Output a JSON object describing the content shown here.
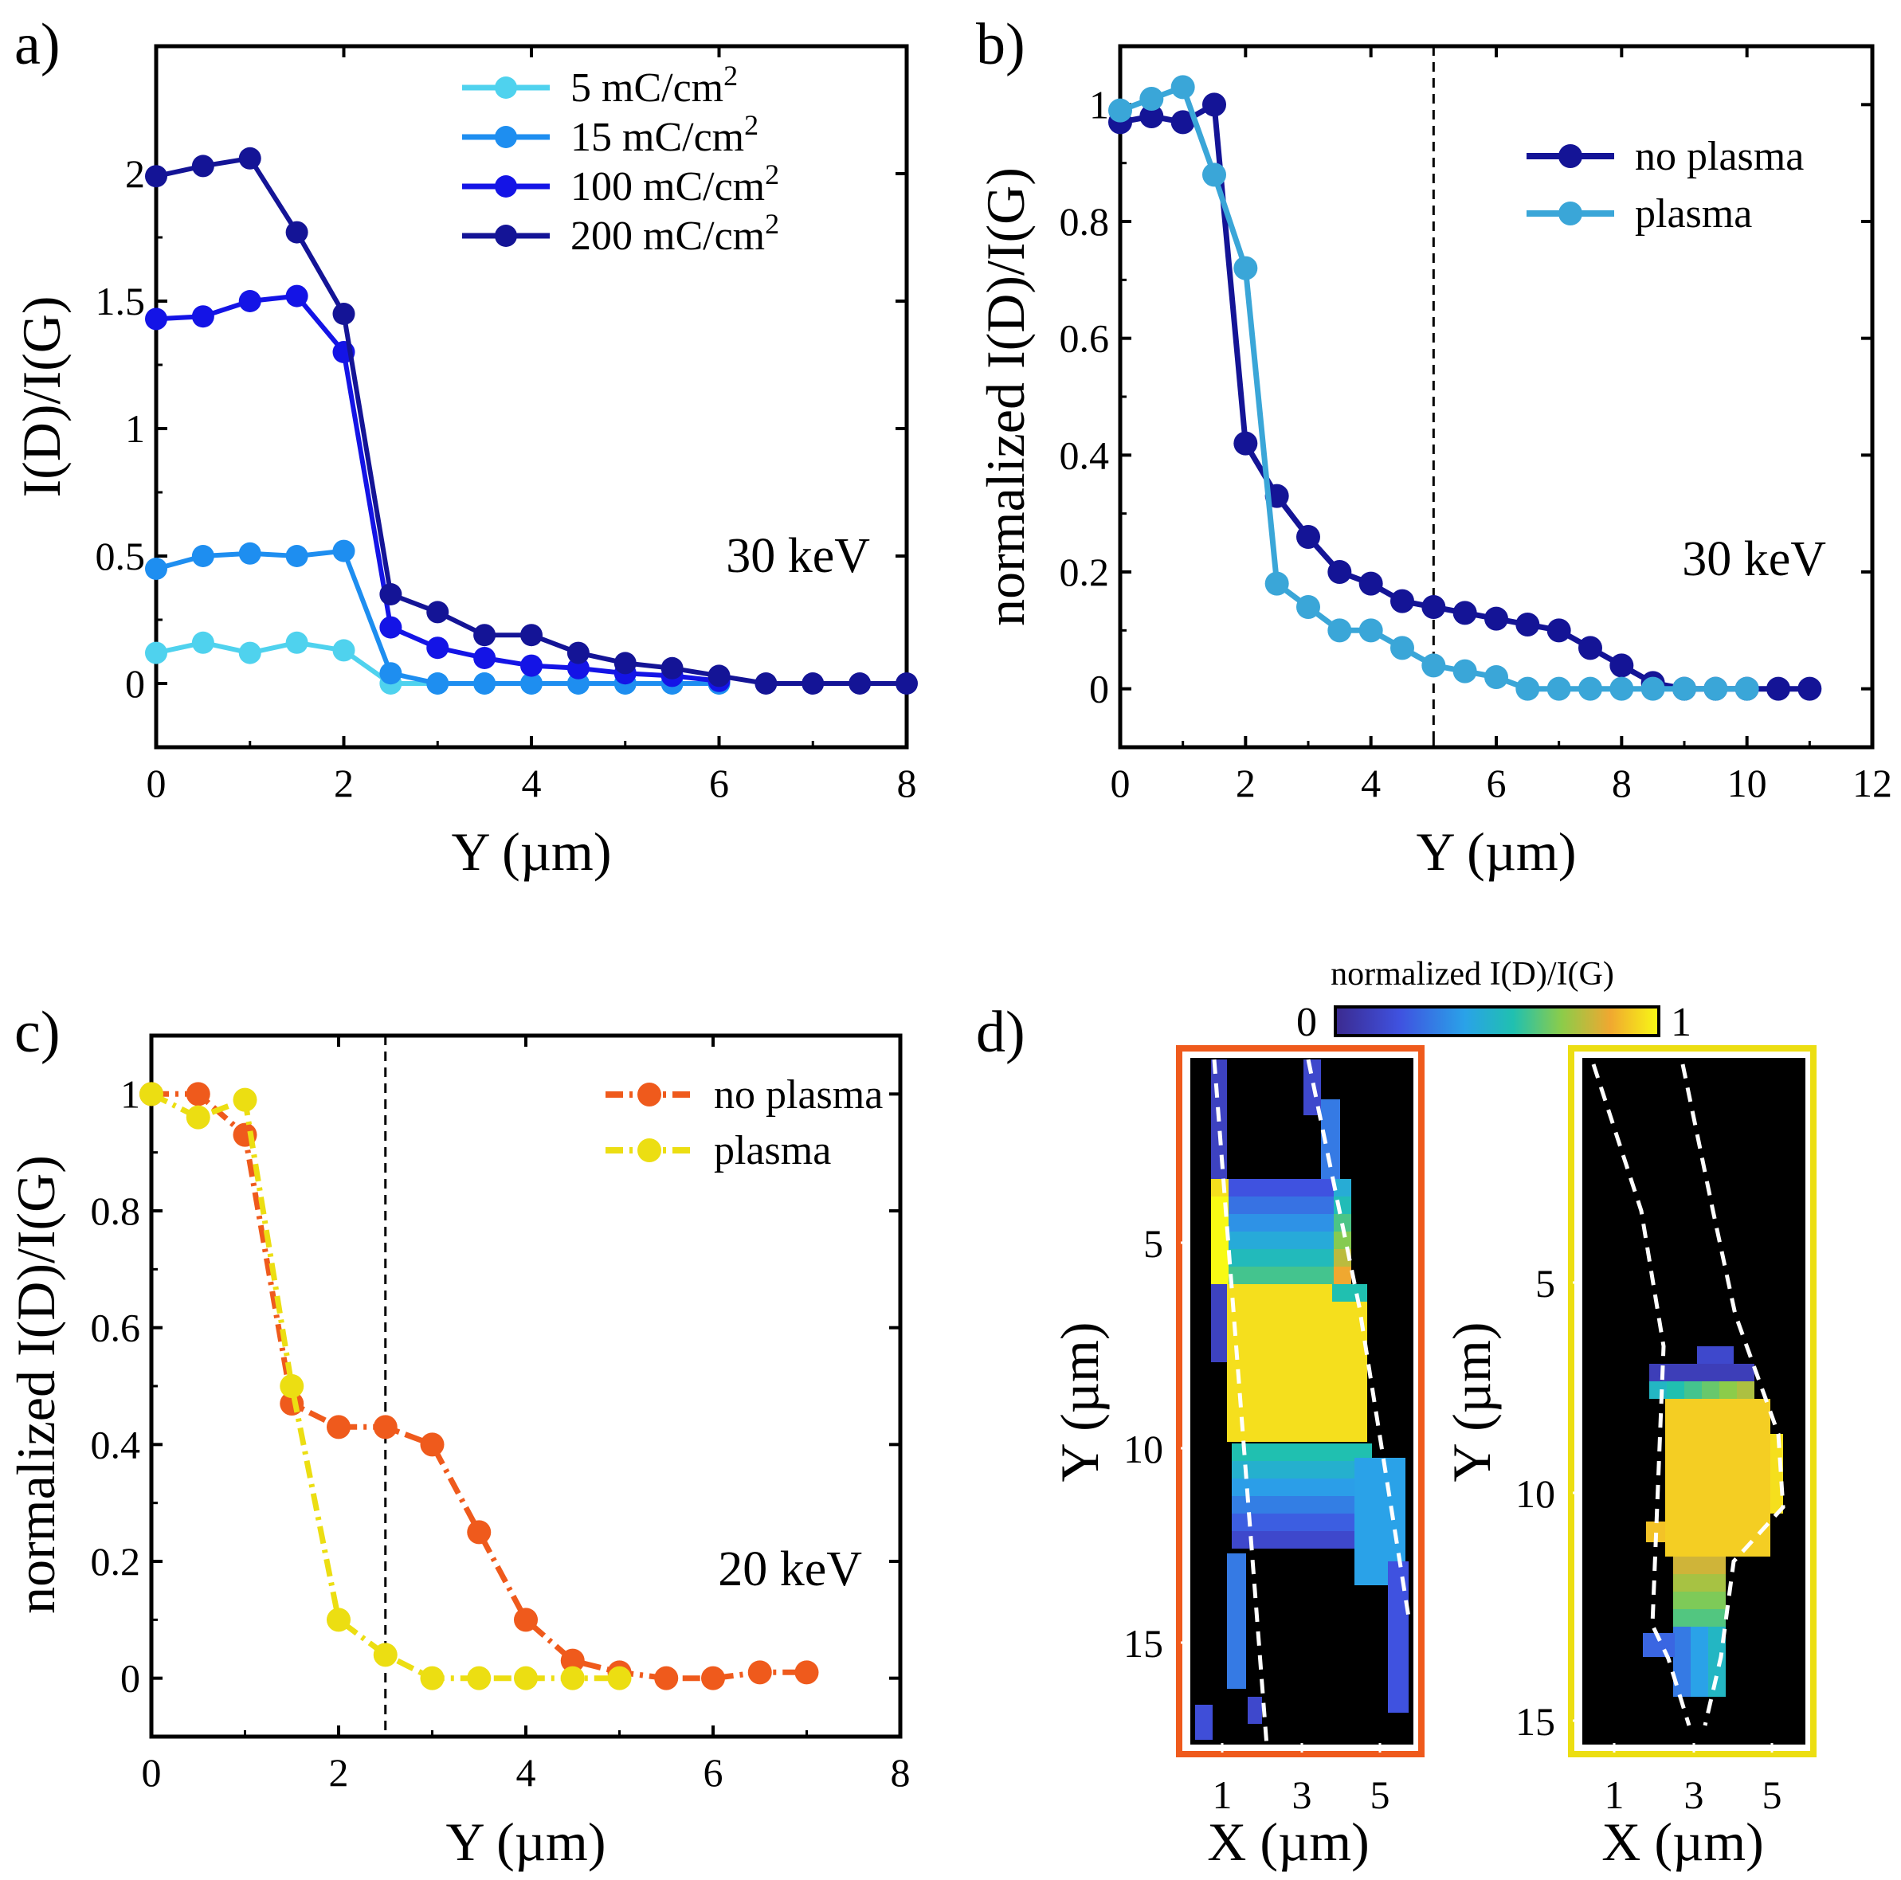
{
  "colors": {
    "c5": "#4fd2ee",
    "c15": "#1e8ef0",
    "c100": "#1414e6",
    "c200": "#141496",
    "b_noplasma": "#141496",
    "b_plasma": "#3aa6d8",
    "c_noplasma": "#ef5a1c",
    "c_plasma": "#ecde12",
    "frame_orange": "#ef5a1c",
    "frame_yellow": "#ecde12"
  },
  "chart_data": [
    {
      "panel": "a)",
      "type": "line",
      "xlabel": "Y (µm)",
      "ylabel": "I(D)/I(G)",
      "xlim": [
        0,
        8
      ],
      "ylim": [
        -0.25,
        2.5
      ],
      "xticks": [
        "0",
        "2",
        "4",
        "6",
        "8"
      ],
      "yticks": [
        "0",
        "0.5",
        "1",
        "1.5",
        "2"
      ],
      "annotation": "30 keV",
      "legend_position": "top-right",
      "series": [
        {
          "name": "5 mC/cm²",
          "label_main": "5 mC/cm",
          "label_sup": "2",
          "x": [
            0,
            0.5,
            1,
            1.5,
            2,
            2.5,
            3,
            3.5,
            4,
            4.5,
            5,
            5.5,
            6
          ],
          "y": [
            0.12,
            0.16,
            0.12,
            0.16,
            0.13,
            0,
            0,
            0,
            0,
            0,
            0,
            0,
            0
          ]
        },
        {
          "name": "15 mC/cm²",
          "label_main": "15 mC/cm",
          "label_sup": "2",
          "x": [
            0,
            0.5,
            1,
            1.5,
            2,
            2.5,
            3,
            3.5,
            4,
            4.5,
            5,
            5.5,
            6
          ],
          "y": [
            0.45,
            0.5,
            0.51,
            0.5,
            0.52,
            0.04,
            0,
            0,
            0,
            0,
            0,
            0,
            0
          ]
        },
        {
          "name": "100 mC/cm²",
          "label_main": "100 mC/cm",
          "label_sup": "2",
          "x": [
            0,
            0.5,
            1,
            1.5,
            2,
            2.5,
            3,
            3.5,
            4,
            4.5,
            5,
            5.5,
            6
          ],
          "y": [
            1.43,
            1.44,
            1.5,
            1.52,
            1.3,
            0.22,
            0.14,
            0.1,
            0.07,
            0.06,
            0.04,
            0.03,
            0.01
          ]
        },
        {
          "name": "200 mC/cm²",
          "label_main": "200 mC/cm",
          "label_sup": "2",
          "x": [
            0,
            0.5,
            1,
            1.5,
            2,
            2.5,
            3,
            3.5,
            4,
            4.5,
            5,
            5.5,
            6,
            6.5,
            7,
            7.5,
            8
          ],
          "y": [
            1.99,
            2.03,
            2.06,
            1.77,
            1.45,
            0.35,
            0.28,
            0.19,
            0.19,
            0.12,
            0.08,
            0.06,
            0.03,
            0,
            0,
            0,
            0
          ]
        }
      ]
    },
    {
      "panel": "b)",
      "type": "line",
      "xlabel": "Y (µm)",
      "ylabel": "normalized  I(D)/I(G)",
      "xlim": [
        0,
        12
      ],
      "ylim": [
        -0.1,
        1.1
      ],
      "xticks": [
        "0",
        "2",
        "4",
        "6",
        "8",
        "10",
        "12"
      ],
      "yticks": [
        "0",
        "0.2",
        "0.4",
        "0.6",
        "0.8",
        "1"
      ],
      "annotation": "30 keV",
      "vline_x": 5,
      "legend_position": "top-right",
      "series": [
        {
          "name": "no plasma",
          "x": [
            0,
            0.5,
            1,
            1.5,
            2,
            2.5,
            3,
            3.5,
            4,
            4.5,
            5,
            5.5,
            6,
            6.5,
            7,
            7.5,
            8,
            8.5,
            9,
            9.5,
            10,
            10.5,
            11
          ],
          "y": [
            0.97,
            0.98,
            0.97,
            1.0,
            0.42,
            0.33,
            0.26,
            0.2,
            0.18,
            0.15,
            0.14,
            0.13,
            0.12,
            0.11,
            0.1,
            0.07,
            0.04,
            0.01,
            0,
            0,
            0,
            0,
            0
          ]
        },
        {
          "name": "plasma",
          "x": [
            0,
            0.5,
            1,
            1.5,
            2,
            2.5,
            3,
            3.5,
            4,
            4.5,
            5,
            5.5,
            6,
            6.5,
            7,
            7.5,
            8,
            8.5,
            9,
            9.5,
            10
          ],
          "y": [
            0.99,
            1.01,
            1.03,
            0.88,
            0.72,
            0.18,
            0.14,
            0.1,
            0.1,
            0.07,
            0.04,
            0.03,
            0.02,
            0,
            0,
            0,
            0,
            0,
            0,
            0,
            0
          ]
        }
      ]
    },
    {
      "panel": "c)",
      "type": "line",
      "xlabel": "Y (µm)",
      "ylabel": "normalized  I(D)/I(G)",
      "xlim": [
        0,
        8
      ],
      "ylim": [
        -0.1,
        1.1
      ],
      "xticks": [
        "0",
        "2",
        "4",
        "6",
        "8"
      ],
      "yticks": [
        "0",
        "0.2",
        "0.4",
        "0.6",
        "0.8",
        "1"
      ],
      "annotation": "20 keV",
      "vline_x": 2.5,
      "legend_position": "top-right",
      "series": [
        {
          "name": "no plasma",
          "x": [
            0,
            0.5,
            1,
            1.5,
            2,
            2.5,
            3,
            3.5,
            4,
            4.5,
            5,
            5.5,
            6,
            6.5,
            7
          ],
          "y": [
            1.0,
            1.0,
            0.93,
            0.47,
            0.43,
            0.43,
            0.4,
            0.25,
            0.1,
            0.03,
            0.01,
            0,
            0,
            0.01,
            0.01
          ]
        },
        {
          "name": "plasma",
          "x": [
            0,
            0.5,
            1,
            1.5,
            2,
            2.5,
            3,
            3.5,
            4,
            4.5,
            5
          ],
          "y": [
            1.0,
            0.96,
            0.99,
            0.5,
            0.1,
            0.04,
            0,
            0,
            0,
            0,
            0
          ]
        }
      ]
    },
    {
      "panel": "d)",
      "type": "heatmap",
      "colorbar_label": "normalized  I(D)/I(G)",
      "colorbar_min": "0",
      "colorbar_max": "1",
      "xlabel": "X (µm)",
      "ylabel": "Y (µm)",
      "maps": [
        {
          "frame": "orange",
          "xticks": [
            "1",
            "3",
            "5"
          ],
          "yticks": [
            "5",
            "10",
            "15"
          ]
        },
        {
          "frame": "yellow",
          "xticks": [
            "1",
            "3",
            "5"
          ],
          "yticks": [
            "5",
            "10",
            "15"
          ]
        }
      ]
    }
  ]
}
